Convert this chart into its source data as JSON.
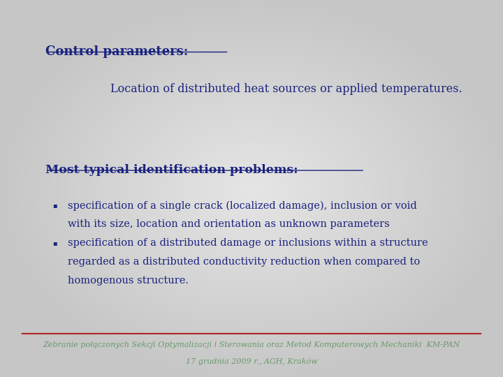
{
  "text_color": "#1a237e",
  "footer_text_color": "#6a9a6a",
  "title": "Control parameters:",
  "subtitle": "Location of distributed heat sources or applied temperatures.",
  "section_header": "Most typical identification problems:",
  "bullet1_line1": "specification of a single crack (localized damage), inclusion or void",
  "bullet1_line2": "with its size, location and orientation as unknown parameters",
  "bullet2_line1": "specification of a distributed damage or inclusions within a structure",
  "bullet2_line2": "regarded as a distributed conductivity reduction when compared to",
  "bullet2_line3": "homogenous structure.",
  "footer_line1": "Zebranie połączonych Sekcji Optymalizacji i Sterowania oraz Metod Komputerowych Mechaniki  KM-PAN",
  "footer_line2": "17 grudnia 2009 r., AGH, Kraków",
  "footer_separator_color": "#b22222",
  "title_fontsize": 13,
  "subtitle_fontsize": 11.5,
  "section_fontsize": 12.5,
  "bullet_fontsize": 10.5,
  "footer_fontsize": 8.0
}
